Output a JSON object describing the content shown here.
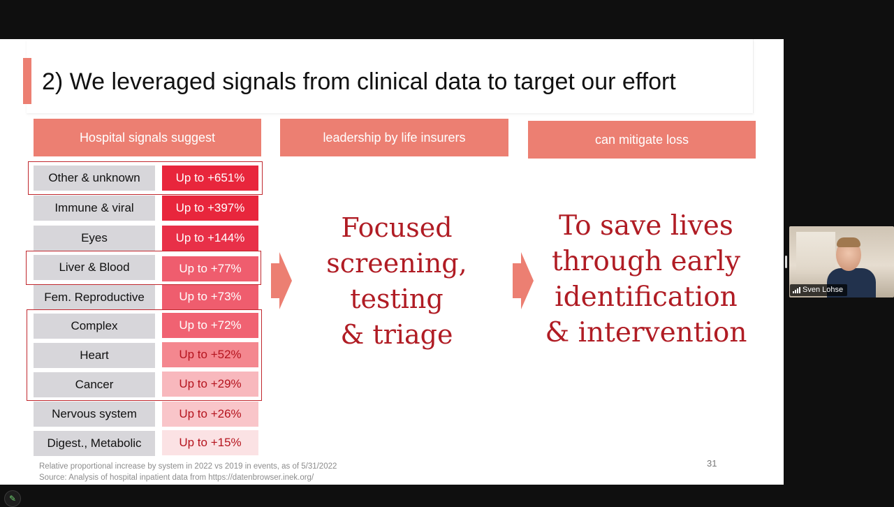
{
  "slide": {
    "title": "2) We leveraged signals from clinical data to target our effort",
    "page_number": "31",
    "colors": {
      "accent": "#ec7f72",
      "highlight_border": "#c0272d",
      "headline_red": "#b01c24",
      "label_gray": "#d7d6da"
    },
    "column_headers": [
      "Hospital signals suggest",
      "leadership by life insurers",
      "can mitigate loss"
    ],
    "rows": [
      {
        "label": "Other & unknown",
        "value": "Up to +651%",
        "bg": "#e8263c",
        "fg": "#ffffff"
      },
      {
        "label": "Immune & viral",
        "value": "Up to +397%",
        "bg": "#e8263c",
        "fg": "#ffffff"
      },
      {
        "label": "Eyes",
        "value": "Up to +144%",
        "bg": "#e83048",
        "fg": "#ffffff"
      },
      {
        "label": "Liver & Blood",
        "value": "Up to +77%",
        "bg": "#ef5d6e",
        "fg": "#ffffff"
      },
      {
        "label": "Fem. Reproductive",
        "value": "Up to +73%",
        "bg": "#ef5d6e",
        "fg": "#ffffff"
      },
      {
        "label": "Complex",
        "value": "Up to +72%",
        "bg": "#f06272",
        "fg": "#ffffff"
      },
      {
        "label": "Heart",
        "value": "Up to +52%",
        "bg": "#f4878f",
        "fg": "#b5141e"
      },
      {
        "label": "Cancer",
        "value": "Up to +29%",
        "bg": "#f8b8bd",
        "fg": "#b5141e"
      },
      {
        "label": "Nervous system",
        "value": "Up to +26%",
        "bg": "#f9c5c9",
        "fg": "#b5141e"
      },
      {
        "label": "Digest., Metabolic",
        "value": "Up to +15%",
        "bg": "#fbe2e4",
        "fg": "#b5141e"
      }
    ],
    "middle_text": "Focused\nscreening,\ntesting\n& triage",
    "right_text": "To save lives\nthrough early\nidentification\n& intervention",
    "footnotes": [
      "Relative proportional increase by system in 2022 vs 2019 in events, as of 5/31/2022",
      "Source: Analysis of hospital inpatient data from https://datenbrowser.inek.org/"
    ]
  },
  "participant": {
    "name": "Sven Lohse",
    "icons": [
      "signal-strength-icon"
    ]
  },
  "toolbar": {
    "icons": [
      "pencil-icon"
    ]
  }
}
